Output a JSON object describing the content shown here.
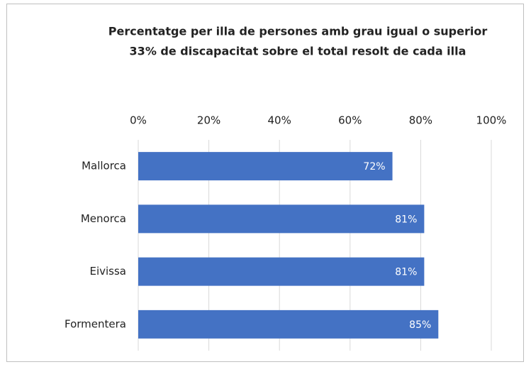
{
  "chart_data": {
    "type": "bar",
    "orientation": "horizontal",
    "title": [
      "Percentatge per illa de persones amb grau igual o superior",
      "33% de discapacitat sobre el total resolt de cada illa"
    ],
    "categories": [
      "Mallorca",
      "Menorca",
      "Eivissa",
      "Formentera"
    ],
    "values": [
      72,
      81,
      81,
      85
    ],
    "value_labels": [
      "72%",
      "81%",
      "81%",
      "85%"
    ],
    "color": "#4472c4",
    "xlim": [
      0,
      100
    ],
    "xticks": [
      {
        "value": 0,
        "label": "0%"
      },
      {
        "value": 20,
        "label": "20%"
      },
      {
        "value": 40,
        "label": "40%"
      },
      {
        "value": 60,
        "label": "60%"
      },
      {
        "value": 80,
        "label": "80%"
      },
      {
        "value": 100,
        "label": "100%"
      }
    ],
    "grid": true
  }
}
